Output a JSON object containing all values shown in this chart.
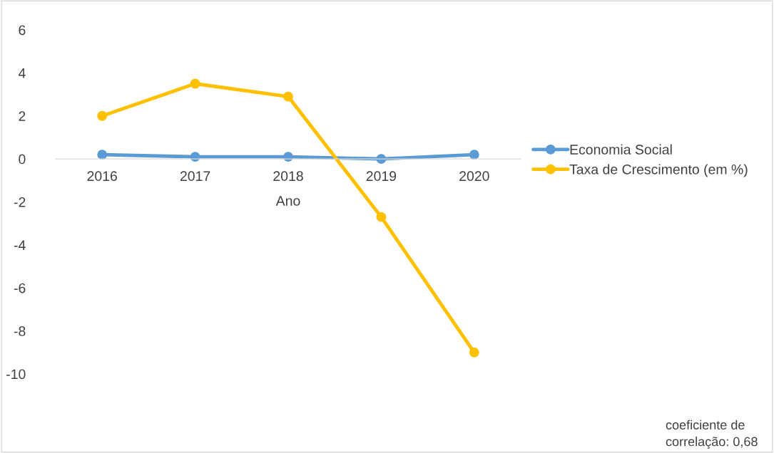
{
  "chart_data": {
    "type": "line",
    "categories": [
      "2016",
      "2017",
      "2018",
      "2019",
      "2020"
    ],
    "series": [
      {
        "name": "Economia Social",
        "color": "#5b9bd5",
        "values": [
          0.2,
          0.1,
          0.1,
          0.0,
          0.2
        ]
      },
      {
        "name": "Taxa de Crescimento (em %)",
        "color": "#ffc000",
        "values": [
          2.0,
          3.5,
          2.9,
          -2.7,
          -9.0
        ]
      }
    ],
    "xlabel": "Ano",
    "ylim": [
      -10,
      6
    ],
    "yticks": [
      -10,
      -8,
      -6,
      -4,
      -2,
      0,
      2,
      4,
      6
    ],
    "grid": false,
    "legend": "right",
    "marker": "circle",
    "line_style": "solid",
    "annotations": [
      "coeficiente de\ncorrelação: 0,68"
    ]
  }
}
